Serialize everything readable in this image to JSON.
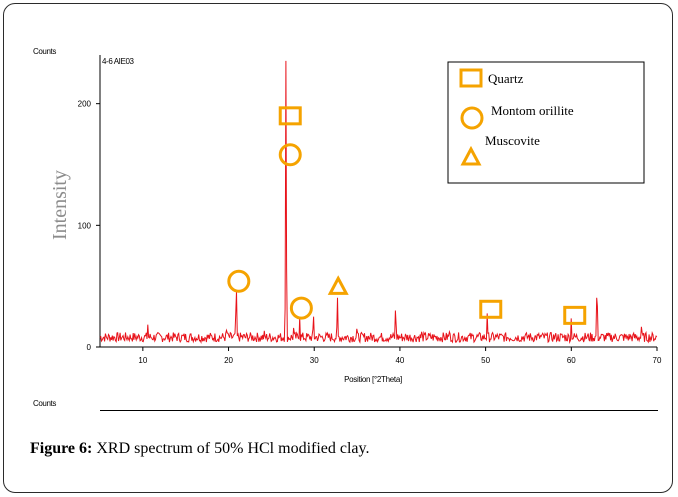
{
  "counts_top": "Counts",
  "counts_bottom": "Counts",
  "caption": {
    "label": "Figure 6:",
    "text": "XRD spectrum of 50% HCl modified clay."
  },
  "colors": {
    "spectrum": "#e8121a",
    "marker": "#f5a300",
    "axis": "#000000"
  },
  "chart_data": {
    "type": "line",
    "sample_label": "4-6 AIE03",
    "xlabel": "Position [°2Theta]",
    "ylabel": "Intensity",
    "xlim": [
      5,
      70
    ],
    "ylim": [
      0,
      240
    ],
    "xticks": [
      10,
      20,
      30,
      40,
      50,
      60,
      70
    ],
    "yticks": [
      0,
      100,
      200
    ],
    "peaks": [
      {
        "x": 10.6,
        "y": 20
      },
      {
        "x": 19.8,
        "y": 19
      },
      {
        "x": 20.9,
        "y": 55
      },
      {
        "x": 24.2,
        "y": 16
      },
      {
        "x": 26.7,
        "y": 240
      },
      {
        "x": 27.6,
        "y": 16
      },
      {
        "x": 28.3,
        "y": 25
      },
      {
        "x": 29.9,
        "y": 30
      },
      {
        "x": 32.7,
        "y": 44
      },
      {
        "x": 35.0,
        "y": 18
      },
      {
        "x": 39.5,
        "y": 36
      },
      {
        "x": 42.5,
        "y": 15
      },
      {
        "x": 45.8,
        "y": 15
      },
      {
        "x": 50.2,
        "y": 30
      },
      {
        "x": 55.0,
        "y": 14
      },
      {
        "x": 60.0,
        "y": 24
      },
      {
        "x": 63.0,
        "y": 56
      },
      {
        "x": 68.2,
        "y": 18
      }
    ],
    "baseline_noise": [
      4,
      12
    ],
    "markers": [
      {
        "shape": "square",
        "x": 27.2,
        "y": 190
      },
      {
        "shape": "circle",
        "x": 27.2,
        "y": 158
      },
      {
        "shape": "circle",
        "x": 21.2,
        "y": 54
      },
      {
        "shape": "circle",
        "x": 28.5,
        "y": 32
      },
      {
        "shape": "triangle",
        "x": 32.8,
        "y": 49
      },
      {
        "shape": "square",
        "x": 50.6,
        "y": 31
      },
      {
        "shape": "square",
        "x": 60.4,
        "y": 26
      }
    ],
    "legend": {
      "position": "top-right",
      "items": [
        {
          "shape": "square",
          "label": "Quartz"
        },
        {
          "shape": "circle",
          "label": "Montom orillite"
        },
        {
          "shape": "triangle",
          "label": "Muscovite"
        }
      ]
    }
  }
}
